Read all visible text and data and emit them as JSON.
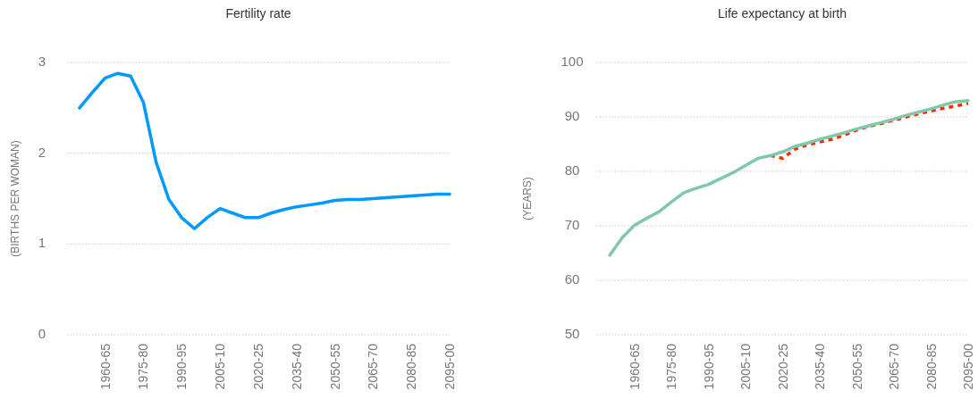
{
  "chart_data": [
    {
      "type": "line",
      "title": "Fertility rate",
      "ylabel": "(BIRTHS PER WOMAN)",
      "categories": [
        null,
        null,
        "1960-65",
        null,
        null,
        "1975-80",
        null,
        null,
        "1990-95",
        null,
        null,
        "2005-10",
        null,
        null,
        "2020-25",
        null,
        null,
        "2035-40",
        null,
        null,
        "2050-55",
        null,
        null,
        "2065-70",
        null,
        null,
        "2080-85",
        null,
        null,
        "2095-00"
      ],
      "ylim": [
        0,
        3
      ],
      "yticks": [
        0,
        1,
        2,
        3
      ],
      "grid": "y",
      "series": [
        {
          "color": "#0099ff",
          "values": [
            2.5,
            2.67,
            2.83,
            2.88,
            2.85,
            2.56,
            1.9,
            1.49,
            1.29,
            1.17,
            1.29,
            1.39,
            1.34,
            1.29,
            1.29,
            1.34,
            1.38,
            1.41,
            1.43,
            1.45,
            1.48,
            1.49,
            1.49,
            1.5,
            1.51,
            1.52,
            1.53,
            1.54,
            1.55,
            1.55
          ]
        }
      ]
    },
    {
      "type": "line",
      "title": "Life expectancy at birth",
      "ylabel": "(YEARS)",
      "categories": [
        null,
        null,
        "1960-65",
        null,
        null,
        "1975-80",
        null,
        null,
        "1990-95",
        null,
        null,
        "2005-10",
        null,
        null,
        "2020-25",
        null,
        null,
        "2035-40",
        null,
        null,
        "2050-55",
        null,
        null,
        "2065-70",
        null,
        null,
        "2080-85",
        null,
        null,
        "2095-00"
      ],
      "ylim": [
        50,
        100
      ],
      "yticks": [
        50,
        60,
        70,
        80,
        90,
        100
      ],
      "grid": "y",
      "series": [
        {
          "color": "#ff2a00",
          "line_style": "dashed",
          "values": [
            null,
            null,
            null,
            null,
            null,
            null,
            null,
            null,
            null,
            null,
            null,
            null,
            null,
            82.9,
            82.4,
            84.1,
            84.9,
            85.4,
            85.9,
            86.7,
            87.6,
            88.3,
            88.8,
            89.4,
            90.0,
            90.6,
            91.1,
            91.6,
            92.0,
            92.5
          ]
        },
        {
          "color": "#7fc8ad",
          "values": [
            64.6,
            67.8,
            70.1,
            71.4,
            72.6,
            74.4,
            76.1,
            76.9,
            77.6,
            78.7,
            79.8,
            81.1,
            82.4,
            82.9,
            83.6,
            84.6,
            85.2,
            85.9,
            86.5,
            87.1,
            87.8,
            88.4,
            89.0,
            89.6,
            90.3,
            90.9,
            91.5,
            92.2,
            92.8,
            93.0
          ]
        }
      ]
    }
  ]
}
